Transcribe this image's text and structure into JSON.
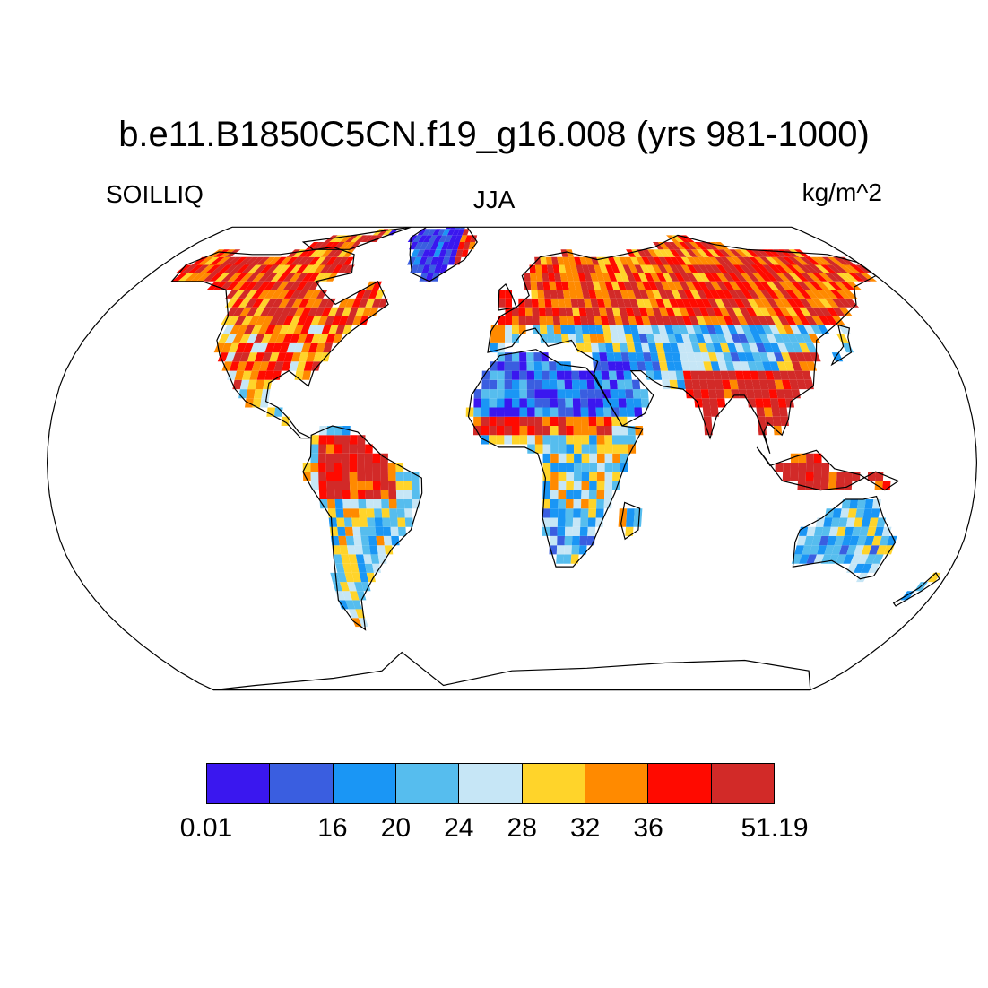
{
  "title": "b.e11.B1850C5CN.f19_g16.008 (yrs 981-1000)",
  "variable": "SOILLIQ",
  "season": "JJA",
  "units": "kg/m^2",
  "colorbar": {
    "colors": [
      "#3a17ef",
      "#3a5ee0",
      "#1a96f5",
      "#56bdee",
      "#c6e6f6",
      "#ffd42a",
      "#ff8a00",
      "#ff0a00",
      "#d22a28"
    ],
    "labels": [
      "0.01",
      "16",
      "20",
      "24",
      "28",
      "32",
      "36",
      "51.19"
    ],
    "label_boundaries": [
      0,
      2,
      3,
      4,
      5,
      6,
      7,
      9
    ]
  },
  "map": {
    "projection": "robinson",
    "ocean_color": "#ffffff",
    "coastline_color": "#000000"
  }
}
